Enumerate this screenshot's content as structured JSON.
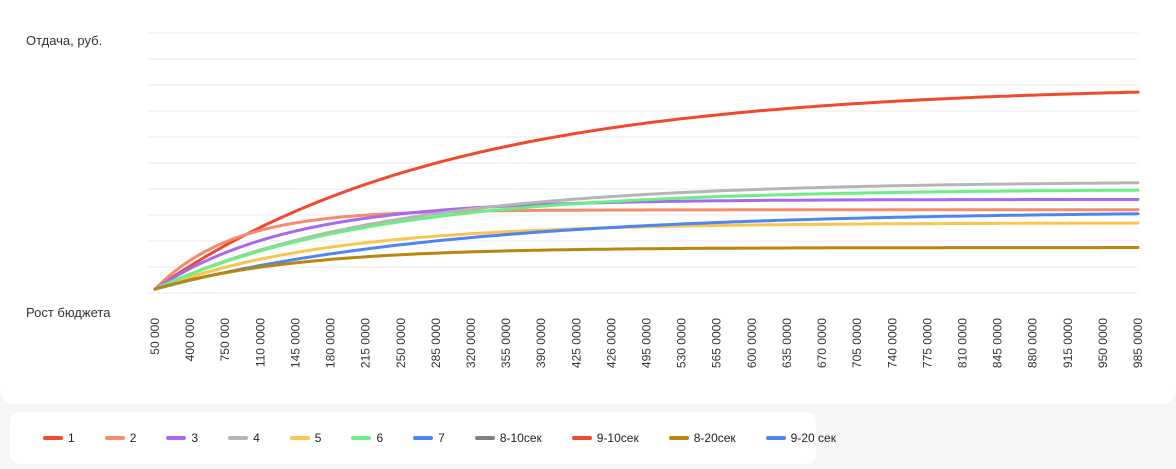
{
  "chart_data": {
    "type": "line",
    "ylabel": "Отдача, руб.",
    "xlabel": "Рост бюджета",
    "x_ticks": [
      "50 000",
      "400 000",
      "750 000",
      "110 0000",
      "145 0000",
      "180 0000",
      "215 0000",
      "250 0000",
      "285 0000",
      "320 0000",
      "355 0000",
      "390 0000",
      "425 0000",
      "426 0000",
      "495 0000",
      "530 0000",
      "565 0000",
      "600 0000",
      "635 0000",
      "670 0000",
      "705 0000",
      "740 0000",
      "775 0000",
      "810 0000",
      "845 0000",
      "880 0000",
      "915 0000",
      "950 0000",
      "985 0000"
    ],
    "ylim": [
      0,
      10
    ],
    "grid": true,
    "legend_position": "bottom",
    "series": [
      {
        "name": "1",
        "color": "#f04a2e",
        "start": 0,
        "end": 8.0,
        "k": 0.12
      },
      {
        "name": "2",
        "color": "#f48c6d",
        "start": 0,
        "end": 3.2,
        "k": 0.45
      },
      {
        "name": "3",
        "color": "#a56af0",
        "start": 0,
        "end": 3.6,
        "k": 0.26
      },
      {
        "name": "4",
        "color": "#b5b5b5",
        "start": 0,
        "end": 4.3,
        "k": 0.15
      },
      {
        "name": "5",
        "color": "#f8c64e",
        "start": 0,
        "end": 2.7,
        "k": 0.2
      },
      {
        "name": "6",
        "color": "#6aef84",
        "start": 0,
        "end": 4.0,
        "k": 0.16
      },
      {
        "name": "7",
        "color": "#4d85f2",
        "start": 0,
        "end": 3.15,
        "k": 0.12
      },
      {
        "name": "8-20сек",
        "color": "#b8870c",
        "start": 0,
        "end": 1.75,
        "k": 0.25
      }
    ],
    "legend": [
      {
        "name": "1",
        "color": "#f04a2e"
      },
      {
        "name": "2",
        "color": "#f48c6d"
      },
      {
        "name": "3",
        "color": "#a56af0"
      },
      {
        "name": "4",
        "color": "#b5b5b5"
      },
      {
        "name": "5",
        "color": "#f8c64e"
      },
      {
        "name": "6",
        "color": "#6aef84"
      },
      {
        "name": "7",
        "color": "#4d85f2"
      },
      {
        "name": "8-10сек",
        "color": "#808080"
      },
      {
        "name": "9-10сек",
        "color": "#f04a2e"
      },
      {
        "name": "8-20сек",
        "color": "#b8870c"
      },
      {
        "name": "9-20 сек",
        "color": "#4d85f2"
      }
    ]
  }
}
